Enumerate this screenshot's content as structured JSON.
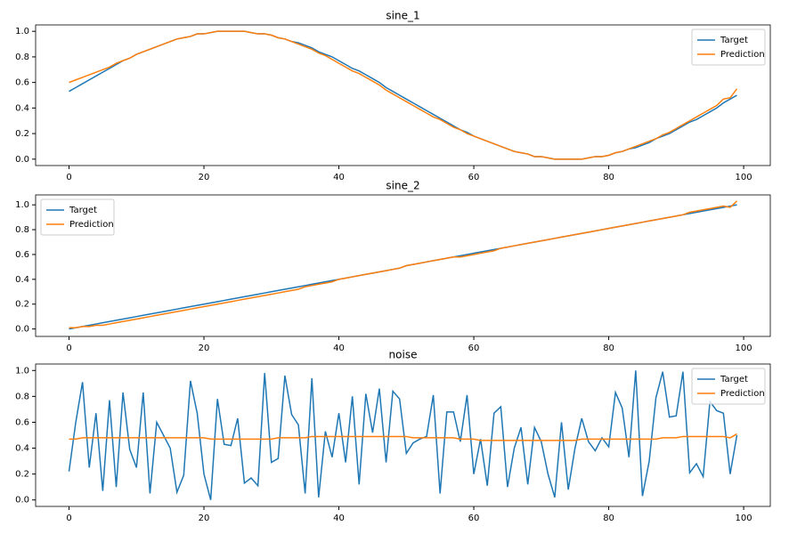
{
  "chart_data": [
    {
      "type": "line",
      "title": "sine_1",
      "x": [
        0,
        1,
        2,
        3,
        4,
        5,
        6,
        7,
        8,
        9,
        10,
        11,
        12,
        13,
        14,
        15,
        16,
        17,
        18,
        19,
        20,
        21,
        22,
        23,
        24,
        25,
        26,
        27,
        28,
        29,
        30,
        31,
        32,
        33,
        34,
        35,
        36,
        37,
        38,
        39,
        40,
        41,
        42,
        43,
        44,
        45,
        46,
        47,
        48,
        49,
        50,
        51,
        52,
        53,
        54,
        55,
        56,
        57,
        58,
        59,
        60,
        61,
        62,
        63,
        64,
        65,
        66,
        67,
        68,
        69,
        70,
        71,
        72,
        73,
        74,
        75,
        76,
        77,
        78,
        79,
        80,
        81,
        82,
        83,
        84,
        85,
        86,
        87,
        88,
        89,
        90,
        91,
        92,
        93,
        94,
        95,
        96,
        97,
        98,
        99
      ],
      "series": [
        {
          "name": "Target",
          "color": "#1f77b4",
          "values": [
            0.53,
            0.56,
            0.59,
            0.62,
            0.65,
            0.68,
            0.71,
            0.74,
            0.77,
            0.79,
            0.82,
            0.84,
            0.86,
            0.88,
            0.9,
            0.92,
            0.94,
            0.95,
            0.96,
            0.98,
            0.98,
            0.99,
            1.0,
            1.0,
            1.0,
            1.0,
            1.0,
            0.99,
            0.98,
            0.98,
            0.97,
            0.95,
            0.94,
            0.92,
            0.91,
            0.89,
            0.87,
            0.84,
            0.82,
            0.8,
            0.77,
            0.74,
            0.71,
            0.69,
            0.66,
            0.63,
            0.6,
            0.56,
            0.53,
            0.5,
            0.47,
            0.44,
            0.41,
            0.38,
            0.35,
            0.32,
            0.29,
            0.26,
            0.23,
            0.21,
            0.18,
            0.16,
            0.14,
            0.12,
            0.1,
            0.08,
            0.06,
            0.05,
            0.04,
            0.02,
            0.02,
            0.01,
            0.0,
            0.0,
            0.0,
            0.0,
            0.0,
            0.01,
            0.02,
            0.02,
            0.03,
            0.05,
            0.06,
            0.08,
            0.09,
            0.11,
            0.13,
            0.16,
            0.18,
            0.2,
            0.23,
            0.26,
            0.29,
            0.31,
            0.34,
            0.37,
            0.4,
            0.44,
            0.47,
            0.5
          ]
        },
        {
          "name": "Prediction",
          "color": "#ff7f0e",
          "values": [
            0.6,
            0.62,
            0.64,
            0.66,
            0.68,
            0.7,
            0.72,
            0.75,
            0.77,
            0.79,
            0.82,
            0.84,
            0.86,
            0.88,
            0.9,
            0.92,
            0.94,
            0.95,
            0.96,
            0.98,
            0.98,
            0.99,
            1.0,
            1.0,
            1.0,
            1.0,
            1.0,
            0.99,
            0.98,
            0.98,
            0.97,
            0.95,
            0.94,
            0.92,
            0.9,
            0.88,
            0.86,
            0.83,
            0.81,
            0.78,
            0.75,
            0.72,
            0.69,
            0.67,
            0.64,
            0.61,
            0.58,
            0.54,
            0.51,
            0.48,
            0.45,
            0.42,
            0.39,
            0.36,
            0.33,
            0.31,
            0.28,
            0.25,
            0.23,
            0.2,
            0.18,
            0.16,
            0.14,
            0.12,
            0.1,
            0.08,
            0.06,
            0.05,
            0.04,
            0.02,
            0.02,
            0.01,
            0.0,
            0.0,
            0.0,
            0.0,
            0.0,
            0.01,
            0.02,
            0.02,
            0.03,
            0.05,
            0.06,
            0.08,
            0.1,
            0.12,
            0.14,
            0.16,
            0.19,
            0.21,
            0.24,
            0.27,
            0.3,
            0.33,
            0.36,
            0.39,
            0.42,
            0.47,
            0.48,
            0.55
          ]
        }
      ],
      "xlim": [
        -4.95,
        103.95
      ],
      "xticks": [
        0,
        20,
        40,
        60,
        80,
        100
      ],
      "ylim": [
        -0.05,
        1.05
      ],
      "yticks": [
        {
          "value": 0,
          "label": "0.0"
        },
        0.2,
        0.4,
        0.6,
        0.8,
        {
          "value": 1,
          "label": "1.0"
        }
      ],
      "legend": "upper right"
    },
    {
      "type": "line",
      "title": "sine_2",
      "x": [
        0,
        1,
        2,
        3,
        4,
        5,
        6,
        7,
        8,
        9,
        10,
        11,
        12,
        13,
        14,
        15,
        16,
        17,
        18,
        19,
        20,
        21,
        22,
        23,
        24,
        25,
        26,
        27,
        28,
        29,
        30,
        31,
        32,
        33,
        34,
        35,
        36,
        37,
        38,
        39,
        40,
        41,
        42,
        43,
        44,
        45,
        46,
        47,
        48,
        49,
        50,
        51,
        52,
        53,
        54,
        55,
        56,
        57,
        58,
        59,
        60,
        61,
        62,
        63,
        64,
        65,
        66,
        67,
        68,
        69,
        70,
        71,
        72,
        73,
        74,
        75,
        76,
        77,
        78,
        79,
        80,
        81,
        82,
        83,
        84,
        85,
        86,
        87,
        88,
        89,
        90,
        91,
        92,
        93,
        94,
        95,
        96,
        97,
        98,
        99
      ],
      "series": [
        {
          "name": "Target",
          "color": "#1f77b4",
          "values": [
            0.0,
            0.01,
            0.02,
            0.03,
            0.04,
            0.05,
            0.06,
            0.07,
            0.08,
            0.09,
            0.1,
            0.11,
            0.12,
            0.13,
            0.14,
            0.15,
            0.16,
            0.17,
            0.18,
            0.19,
            0.2,
            0.21,
            0.22,
            0.23,
            0.24,
            0.25,
            0.26,
            0.27,
            0.28,
            0.29,
            0.3,
            0.31,
            0.32,
            0.33,
            0.34,
            0.35,
            0.36,
            0.37,
            0.38,
            0.39,
            0.4,
            0.41,
            0.42,
            0.43,
            0.44,
            0.45,
            0.46,
            0.47,
            0.48,
            0.49,
            0.51,
            0.52,
            0.53,
            0.54,
            0.55,
            0.56,
            0.57,
            0.58,
            0.59,
            0.6,
            0.61,
            0.62,
            0.63,
            0.64,
            0.65,
            0.66,
            0.67,
            0.68,
            0.69,
            0.7,
            0.71,
            0.72,
            0.73,
            0.74,
            0.75,
            0.76,
            0.77,
            0.78,
            0.79,
            0.8,
            0.81,
            0.82,
            0.83,
            0.84,
            0.85,
            0.86,
            0.87,
            0.88,
            0.89,
            0.9,
            0.91,
            0.92,
            0.93,
            0.94,
            0.95,
            0.96,
            0.97,
            0.98,
            0.99,
            1.0
          ]
        },
        {
          "name": "Prediction",
          "color": "#ff7f0e",
          "values": [
            0.01,
            0.01,
            0.02,
            0.02,
            0.03,
            0.03,
            0.04,
            0.05,
            0.06,
            0.07,
            0.08,
            0.09,
            0.1,
            0.11,
            0.12,
            0.13,
            0.14,
            0.15,
            0.16,
            0.17,
            0.18,
            0.19,
            0.2,
            0.21,
            0.22,
            0.23,
            0.24,
            0.25,
            0.26,
            0.27,
            0.28,
            0.29,
            0.3,
            0.31,
            0.32,
            0.34,
            0.35,
            0.36,
            0.37,
            0.38,
            0.4,
            0.41,
            0.42,
            0.43,
            0.44,
            0.45,
            0.46,
            0.47,
            0.48,
            0.49,
            0.51,
            0.52,
            0.53,
            0.54,
            0.55,
            0.56,
            0.57,
            0.58,
            0.58,
            0.59,
            0.6,
            0.61,
            0.62,
            0.63,
            0.65,
            0.66,
            0.67,
            0.68,
            0.69,
            0.7,
            0.71,
            0.72,
            0.73,
            0.74,
            0.75,
            0.76,
            0.77,
            0.78,
            0.79,
            0.8,
            0.81,
            0.82,
            0.83,
            0.84,
            0.85,
            0.86,
            0.87,
            0.88,
            0.89,
            0.9,
            0.91,
            0.92,
            0.94,
            0.95,
            0.96,
            0.97,
            0.98,
            0.99,
            0.98,
            1.03
          ]
        }
      ],
      "xlim": [
        -4.95,
        103.95
      ],
      "xticks": [
        0,
        20,
        40,
        60,
        80,
        100
      ],
      "ylim": [
        -0.06,
        1.08
      ],
      "yticks": [
        {
          "value": 0,
          "label": "0.0"
        },
        0.2,
        0.4,
        0.6,
        0.8,
        {
          "value": 1,
          "label": "1.0"
        }
      ],
      "legend": "upper left"
    },
    {
      "type": "line",
      "title": "noise",
      "x": [
        0,
        1,
        2,
        3,
        4,
        5,
        6,
        7,
        8,
        9,
        10,
        11,
        12,
        13,
        14,
        15,
        16,
        17,
        18,
        19,
        20,
        21,
        22,
        23,
        24,
        25,
        26,
        27,
        28,
        29,
        30,
        31,
        32,
        33,
        34,
        35,
        36,
        37,
        38,
        39,
        40,
        41,
        42,
        43,
        44,
        45,
        46,
        47,
        48,
        49,
        50,
        51,
        52,
        53,
        54,
        55,
        56,
        57,
        58,
        59,
        60,
        61,
        62,
        63,
        64,
        65,
        66,
        67,
        68,
        69,
        70,
        71,
        72,
        73,
        74,
        75,
        76,
        77,
        78,
        79,
        80,
        81,
        82,
        83,
        84,
        85,
        86,
        87,
        88,
        89,
        90,
        91,
        92,
        93,
        94,
        95,
        96,
        97,
        98,
        99
      ],
      "series": [
        {
          "name": "Target",
          "color": "#1f77b4",
          "values": [
            0.22,
            0.6,
            0.91,
            0.25,
            0.67,
            0.07,
            0.77,
            0.1,
            0.83,
            0.39,
            0.25,
            0.83,
            0.05,
            0.6,
            0.5,
            0.4,
            0.06,
            0.19,
            0.92,
            0.67,
            0.2,
            0.0,
            0.78,
            0.43,
            0.42,
            0.63,
            0.13,
            0.17,
            0.11,
            0.98,
            0.29,
            0.32,
            0.96,
            0.66,
            0.58,
            0.05,
            0.94,
            0.02,
            0.53,
            0.33,
            0.67,
            0.29,
            0.8,
            0.12,
            0.82,
            0.52,
            0.86,
            0.29,
            0.84,
            0.78,
            0.36,
            0.44,
            0.47,
            0.49,
            0.81,
            0.05,
            0.68,
            0.68,
            0.45,
            0.81,
            0.2,
            0.47,
            0.11,
            0.67,
            0.72,
            0.1,
            0.4,
            0.56,
            0.12,
            0.56,
            0.45,
            0.2,
            0.02,
            0.6,
            0.08,
            0.4,
            0.63,
            0.45,
            0.38,
            0.48,
            0.41,
            0.83,
            0.71,
            0.33,
            1.0,
            0.03,
            0.3,
            0.79,
            0.99,
            0.64,
            0.65,
            0.99,
            0.21,
            0.28,
            0.18,
            0.76,
            0.69,
            0.67,
            0.2,
            0.5
          ]
        },
        {
          "name": "Prediction",
          "color": "#ff7f0e",
          "values": [
            0.47,
            0.47,
            0.48,
            0.48,
            0.48,
            0.48,
            0.48,
            0.48,
            0.48,
            0.48,
            0.48,
            0.48,
            0.48,
            0.48,
            0.48,
            0.48,
            0.48,
            0.48,
            0.48,
            0.48,
            0.48,
            0.47,
            0.47,
            0.47,
            0.47,
            0.47,
            0.47,
            0.47,
            0.47,
            0.47,
            0.47,
            0.48,
            0.48,
            0.48,
            0.48,
            0.48,
            0.49,
            0.49,
            0.49,
            0.49,
            0.49,
            0.49,
            0.49,
            0.49,
            0.49,
            0.49,
            0.49,
            0.49,
            0.49,
            0.49,
            0.49,
            0.48,
            0.48,
            0.48,
            0.48,
            0.48,
            0.48,
            0.48,
            0.47,
            0.47,
            0.47,
            0.46,
            0.46,
            0.46,
            0.46,
            0.46,
            0.46,
            0.46,
            0.46,
            0.46,
            0.46,
            0.46,
            0.46,
            0.46,
            0.46,
            0.46,
            0.47,
            0.47,
            0.47,
            0.47,
            0.47,
            0.47,
            0.47,
            0.47,
            0.47,
            0.47,
            0.47,
            0.47,
            0.48,
            0.48,
            0.48,
            0.49,
            0.49,
            0.49,
            0.49,
            0.49,
            0.49,
            0.49,
            0.48,
            0.51
          ]
        }
      ],
      "xlim": [
        -4.95,
        103.95
      ],
      "xticks": [
        0,
        20,
        40,
        60,
        80,
        100
      ],
      "ylim": [
        -0.05,
        1.05
      ],
      "yticks": [
        {
          "value": 0,
          "label": "0.0"
        },
        0.2,
        0.4,
        0.6,
        0.8,
        {
          "value": 1,
          "label": "1.0"
        }
      ],
      "legend": "upper right"
    }
  ]
}
